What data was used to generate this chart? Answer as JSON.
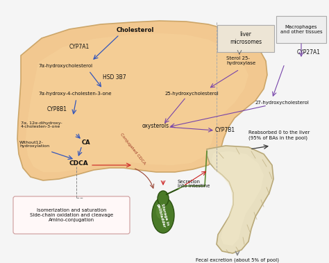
{
  "background_color": "#f5f5f5",
  "liver_color": "#f2c485",
  "liver_outline": "#c8a060",
  "box_color_liver_micro": "#e8ddd0",
  "box_color_macro": "#e8e8e8",
  "arrow_blue": "#3355bb",
  "arrow_purple": "#7744aa",
  "arrow_red": "#cc2222",
  "arrow_black": "#333333",
  "arrow_gray": "#888888",
  "text_dark": "#111111",
  "text_maroon": "#993322",
  "gallbladder_color": "#4a7a28",
  "gallbladder_light": "#6a9a40",
  "intestine_color": "#e8dfc0",
  "intestine_outline": "#b8a878",
  "labels": {
    "cholesterol": "Cholesterol",
    "cyp7a1": "CYP7A1",
    "hydroxy1": "7α-hydroxycholesterol",
    "hsd3b7": "HSD 3B7",
    "hydroxy2": "7α-hydroxy-4-cholesten-3-one",
    "cyp8b1": "CYP8B1",
    "dihydroxy": "7α, 12α-dihydroxy-\n4-cholesten-3-one",
    "ca": "CA",
    "without12": "Without12-\nhydroxylation",
    "cdca": "CDCA",
    "conj_cdca": "Conjugated CDCA",
    "oxysterols": "oxysterols",
    "cyp7b1": "CYP7B1",
    "liver_micro": "liver\nmicrosomes",
    "sterol25": "Sterol 25-\nhydroxylase",
    "hydroxy25": "25-hydroxycholesterol",
    "hydroxy27": "27-hydroxycholesterol",
    "macrophages": "Macrophages\nand other tissues",
    "cyp27a1": "CYP27A1",
    "reabsorbed": "Reabsorbed 0 to the liver\n(95% of BAs in the pool)",
    "secretion": "Secretion\ninto intestine",
    "fecal": "Fecal excretion (about 5% of pool)",
    "gallbladder": "Storage in\ngallbladder",
    "isomerization": "Isomerization and saturation\nSide-chain oxidation and cleavage\nAmino-conjugation"
  }
}
